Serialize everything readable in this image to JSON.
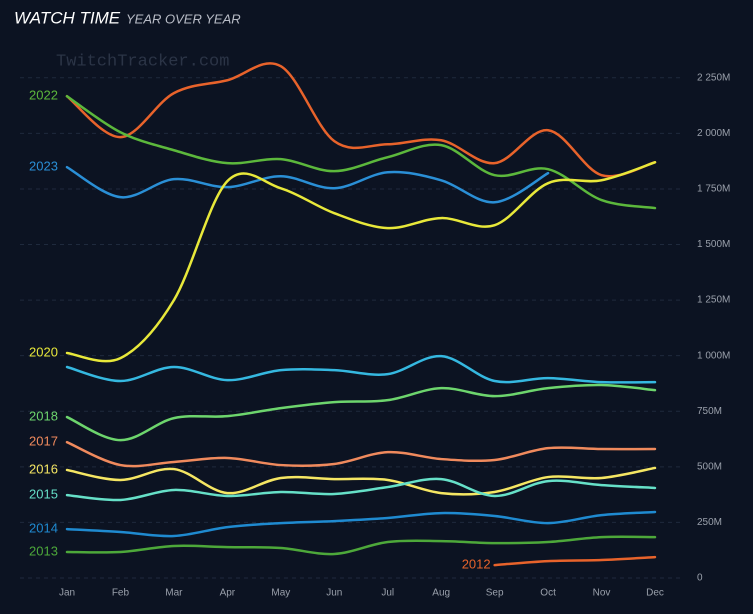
{
  "chart_data": {
    "type": "line",
    "title": "WATCH TIME",
    "subtitle": "YEAR OVER YEAR",
    "watermark": "TwitchTracker.com",
    "categories": [
      "Jan",
      "Feb",
      "Mar",
      "Apr",
      "May",
      "Jun",
      "Jul",
      "Aug",
      "Sep",
      "Oct",
      "Nov",
      "Dec"
    ],
    "ylim": [
      0,
      2330
    ],
    "yticks": [
      0,
      {
        "value": 250,
        "label": "250M"
      },
      {
        "value": 500,
        "label": "500M"
      },
      {
        "value": 750,
        "label": "750M"
      },
      {
        "value": 1000,
        "label": "1 000M"
      },
      {
        "value": 1250,
        "label": "1 250M"
      },
      {
        "value": 1500,
        "label": "1 500M"
      },
      {
        "value": 1750,
        "label": "1 750M"
      },
      {
        "value": 2000,
        "label": "2 000M"
      },
      {
        "value": 2250,
        "label": "2 250M"
      }
    ],
    "grid": true,
    "series": [
      {
        "color": "#e8632b",
        "values": [
          2167,
          1983,
          2181,
          2239,
          2302,
          1965,
          1951,
          1969,
          1866,
          2014,
          1812,
          1870
        ]
      },
      {
        "name": "2022",
        "color": "#5cb83c",
        "values": [
          2167,
          2005,
          1924,
          1866,
          1884,
          1830,
          1893,
          1947,
          1812,
          1839,
          1700,
          1664
        ]
      },
      {
        "name": "2023",
        "color": "#2a8fd6",
        "values": [
          1848,
          1713,
          1794,
          1758,
          1807,
          1753,
          1825,
          1789,
          1690,
          1821,
          null,
          null
        ]
      },
      {
        "name": "2020",
        "color": "#e8e83a",
        "values": [
          1012,
          989,
          1250,
          1785,
          1753,
          1641,
          1574,
          1619,
          1587,
          1776,
          1789,
          1870
        ]
      },
      {
        "color": "#35b8e0",
        "values": [
          949,
          886,
          949,
          890,
          935,
          935,
          917,
          998,
          886,
          899,
          881,
          881
        ]
      },
      {
        "name": "2018",
        "color": "#6dd56d",
        "values": [
          724,
          620,
          719,
          728,
          764,
          791,
          800,
          854,
          818,
          854,
          868,
          845
        ]
      },
      {
        "name": "2017",
        "color": "#f08a5d",
        "values": [
          611,
          508,
          522,
          540,
          508,
          513,
          566,
          535,
          531,
          584,
          580,
          580
        ]
      },
      {
        "name": "2016",
        "color": "#f5e663",
        "values": [
          486,
          441,
          490,
          382,
          450,
          445,
          441,
          382,
          387,
          454,
          450,
          495
        ]
      },
      {
        "name": "2015",
        "color": "#66e0c8",
        "values": [
          373,
          351,
          396,
          369,
          387,
          378,
          409,
          445,
          369,
          436,
          418,
          405
        ]
      },
      {
        "name": "2014",
        "color": "#1f8ad0",
        "values": [
          220,
          207,
          189,
          229,
          247,
          256,
          270,
          292,
          279,
          247,
          283,
          297
        ]
      },
      {
        "name": "2013",
        "color": "#4da83a",
        "values": [
          117,
          117,
          144,
          139,
          135,
          108,
          162,
          166,
          157,
          162,
          184,
          184
        ]
      },
      {
        "name": "2012",
        "color": "#e8632b",
        "values": [
          null,
          null,
          null,
          null,
          null,
          null,
          null,
          null,
          58,
          76,
          81,
          94
        ]
      }
    ]
  }
}
